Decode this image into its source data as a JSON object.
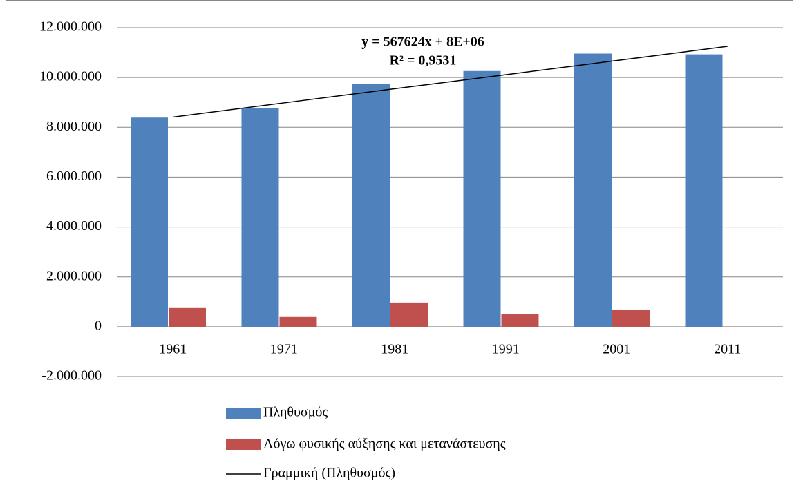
{
  "chart_data": {
    "type": "bar",
    "categories": [
      "1961",
      "1971",
      "1981",
      "1991",
      "2001",
      "2011"
    ],
    "series": [
      {
        "name": "Πληθυσμός",
        "color": "#4f81bd",
        "values": [
          8390000,
          8770000,
          9740000,
          10260000,
          10960000,
          10930000
        ]
      },
      {
        "name": "Λόγω φυσικής αύξησης και μετανάστευσης",
        "color": "#c0504d",
        "values": [
          750000,
          390000,
          970000,
          500000,
          690000,
          -30000
        ]
      }
    ],
    "trendline": {
      "name": "Γραμμική (Πληθυσμός)",
      "color": "#000000",
      "equation": "y = 567624x + 8E+06",
      "r_squared": "R² = 0,9531",
      "values": [
        8410000,
        8980000,
        9550000,
        10110000,
        10680000,
        11250000
      ]
    },
    "ylim": [
      -2000000,
      12000000
    ],
    "yticks": [
      {
        "value": -2000000,
        "label": "-2.000.000"
      },
      0,
      {
        "value": 2000000,
        "label": "2.000.000"
      },
      {
        "value": 4000000,
        "label": "4.000.000"
      },
      {
        "value": 6000000,
        "label": "6.000.000"
      },
      {
        "value": 8000000,
        "label": "8.000.000"
      },
      {
        "value": 10000000,
        "label": "10.000.000"
      },
      {
        "value": 12000000,
        "label": "12.000.000"
      }
    ],
    "grid": true
  }
}
